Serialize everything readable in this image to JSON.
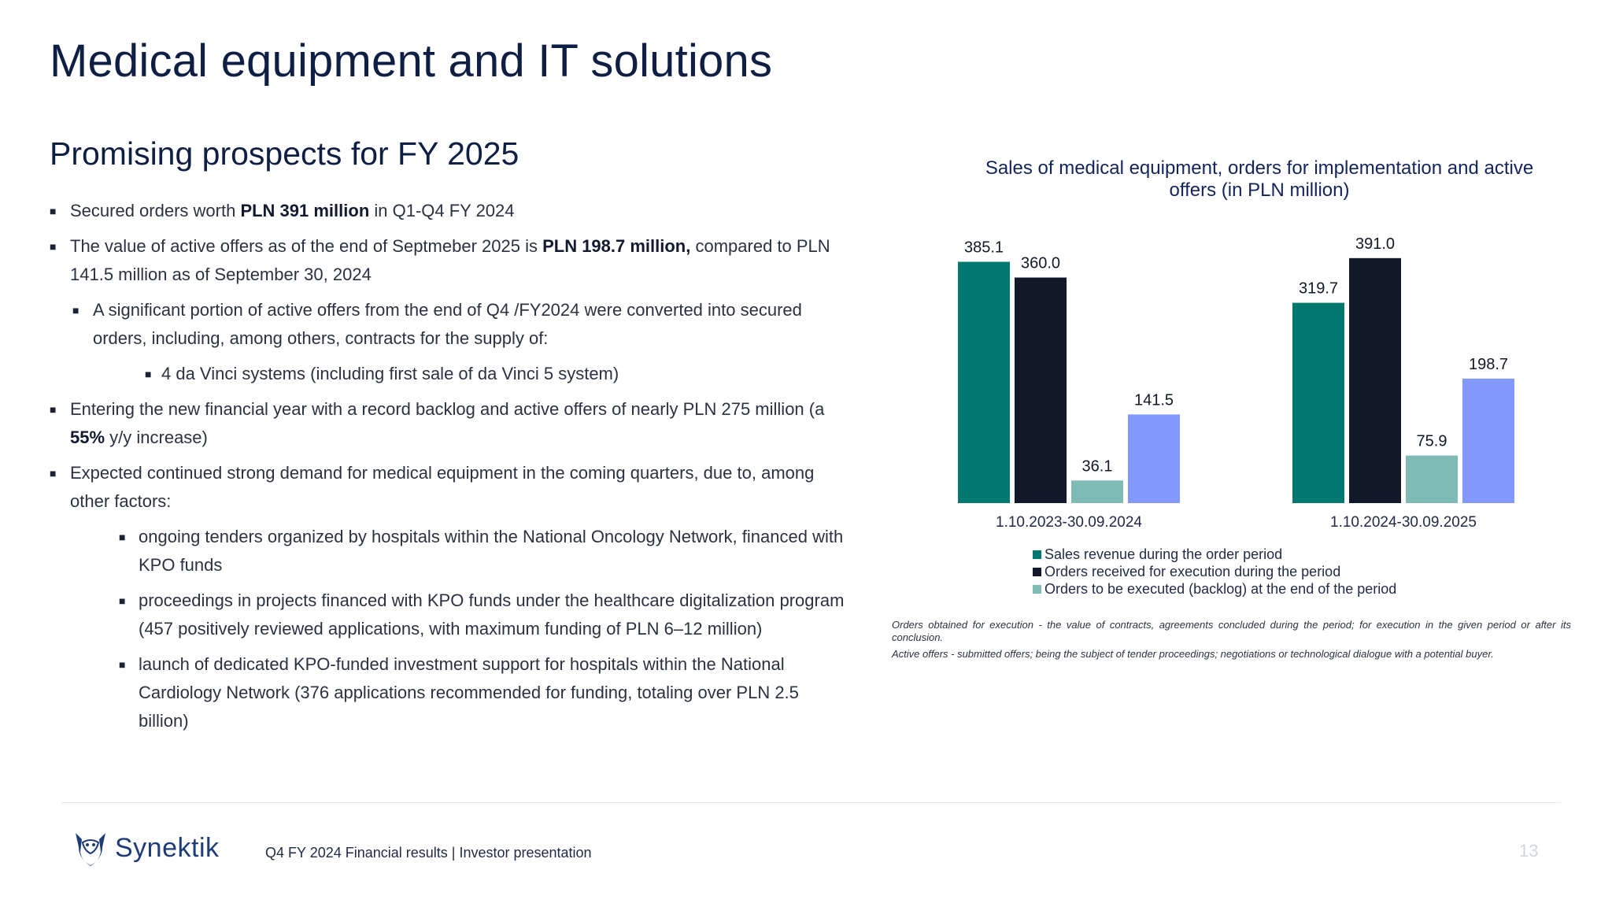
{
  "slide": {
    "title": "Medical equipment and IT solutions",
    "subtitle": "Promising prospects for FY 2025"
  },
  "bullets": {
    "b1": {
      "pre": "Secured orders worth ",
      "bold": "PLN 391 million",
      "post": " in Q1-Q4 FY 2024"
    },
    "b2": {
      "pre": "The value of active offers as of the end of Septmeber 2025 is ",
      "bold": "PLN 198.7 million,",
      "post": " compared to PLN 141.5 million as of September 30, 2024"
    },
    "b2a": "A significant portion of active offers from the end of Q4 /FY2024 were converted into secured orders, including, among others, contracts for the supply of:",
    "b2a1": "4 da Vinci systems (including first sale of da Vinci 5 system)",
    "b3": {
      "pre": "Entering the new financial year with a record backlog and active offers of nearly PLN 275 million (a ",
      "bold": "55%",
      "post": " y/y increase)"
    },
    "b4": "Expected continued strong demand for medical equipment in the coming quarters, due to, among other factors:",
    "b4a": "ongoing tenders organized by hospitals within the National Oncology Network, financed with KPO funds",
    "b4b": "proceedings in projects financed with KPO funds under the healthcare digitalization program (457 positively reviewed applications, with maximum funding of PLN 6–12 million)",
    "b4c": "launch of dedicated KPO-funded investment support for hospitals within the National Cardiology Network (376 applications recommended for funding, totaling over PLN 2.5 billion)"
  },
  "chart_data": {
    "type": "bar",
    "title": "Sales of medical equipment, orders for implementation and active offers (in PLN million)",
    "categories": [
      "1.10.2023-30.09.2024",
      "1.10.2024-30.09.2025"
    ],
    "series": [
      {
        "name": "Sales revenue during the order period",
        "values": [
          385.1,
          319.7
        ],
        "labels": [
          "385.1",
          "319.7"
        ],
        "color": "#00786f"
      },
      {
        "name": "Orders received for execution during the period",
        "values": [
          360.0,
          391.0
        ],
        "labels": [
          "360.0",
          "391.0"
        ],
        "color": "#111827"
      },
      {
        "name": "Orders to be executed (backlog) at the end of the period",
        "values": [
          36.1,
          75.9
        ],
        "labels": [
          "36.1",
          "75.9"
        ],
        "color": "#80bab4"
      },
      {
        "name": "",
        "values": [
          141.5,
          198.7
        ],
        "labels": [
          "141.5",
          "198.7"
        ],
        "color": "#8499ff"
      }
    ],
    "ylim": [
      0,
      400
    ],
    "grid": false,
    "legend_position": "bottom"
  },
  "notes": {
    "n1": "Orders obtained for execution - the value of contracts, agreements concluded during the period; for execution in the given period or after its conclusion.",
    "n2": "Active offers - submitted offers; being the subject of tender proceedings; negotiations or technological dialogue with a potential buyer."
  },
  "footer": {
    "logo_text": "Synektik",
    "logo_icon": "synektik-logo-icon",
    "text": "Q4 FY 2024 Financial results |  Investor presentation",
    "page": "13"
  }
}
